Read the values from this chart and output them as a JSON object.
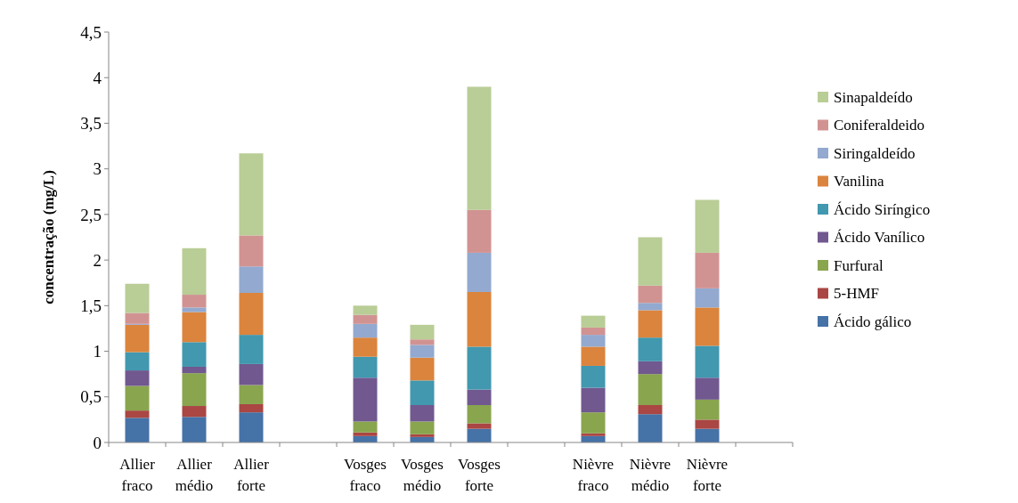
{
  "chart_data": {
    "type": "bar",
    "stacked": true,
    "ylabel": "concentração (mg/L)",
    "categories": [
      "Allier fraco",
      "Allier médio",
      "Allier forte",
      null,
      "Vosges fraco",
      "Vosges médio",
      "Vosges forte",
      null,
      "Nièvre fraco",
      "Nièvre médio",
      "Nièvre forte",
      null
    ],
    "series": [
      {
        "name": "Ácido gálico",
        "color": "#4572a7",
        "values": [
          0.27,
          0.28,
          0.33,
          null,
          0.07,
          0.06,
          0.15,
          null,
          0.07,
          0.31,
          0.15,
          null
        ]
      },
      {
        "name": "5-HMF",
        "color": "#aa4643",
        "values": [
          0.08,
          0.12,
          0.09,
          null,
          0.04,
          0.03,
          0.06,
          null,
          0.03,
          0.1,
          0.1,
          null
        ]
      },
      {
        "name": "Furfural",
        "color": "#89a54e",
        "values": [
          0.27,
          0.36,
          0.21,
          null,
          0.12,
          0.14,
          0.2,
          null,
          0.23,
          0.34,
          0.22,
          null
        ]
      },
      {
        "name": "Ácido Vanílico",
        "color": "#71588f",
        "values": [
          0.17,
          0.07,
          0.23,
          null,
          0.48,
          0.18,
          0.17,
          null,
          0.27,
          0.14,
          0.24,
          null
        ]
      },
      {
        "name": "Ácido Siríngico",
        "color": "#4198af",
        "values": [
          0.2,
          0.27,
          0.32,
          null,
          0.23,
          0.27,
          0.47,
          null,
          0.24,
          0.26,
          0.35,
          null
        ]
      },
      {
        "name": "Vanilina",
        "color": "#db843d",
        "values": [
          0.3,
          0.33,
          0.46,
          null,
          0.21,
          0.25,
          0.6,
          null,
          0.21,
          0.3,
          0.42,
          null
        ]
      },
      {
        "name": "Siringaldeído",
        "color": "#93a9cf",
        "values": [
          0.01,
          0.05,
          0.29,
          null,
          0.15,
          0.14,
          0.43,
          null,
          0.13,
          0.08,
          0.21,
          null
        ]
      },
      {
        "name": "Coniferaldeido",
        "color": "#d19392",
        "values": [
          0.12,
          0.14,
          0.34,
          null,
          0.1,
          0.06,
          0.47,
          null,
          0.08,
          0.19,
          0.39,
          null
        ]
      },
      {
        "name": "Sinapaldeído",
        "color": "#b9cd96",
        "values": [
          0.32,
          0.51,
          0.9,
          null,
          0.1,
          0.16,
          1.35,
          null,
          0.13,
          0.53,
          0.58,
          null
        ]
      }
    ],
    "ylim": [
      0,
      4.5
    ],
    "yticks": [
      0,
      {
        "value": 0.5,
        "label": "0,5"
      },
      1,
      {
        "value": 1.5,
        "label": "1,5"
      },
      2,
      {
        "value": 2.5,
        "label": "2,5"
      },
      3,
      {
        "value": 3.5,
        "label": "3,5"
      },
      4,
      {
        "value": 4.5,
        "label": "4,5"
      }
    ],
    "grid": false,
    "legend": "right"
  }
}
